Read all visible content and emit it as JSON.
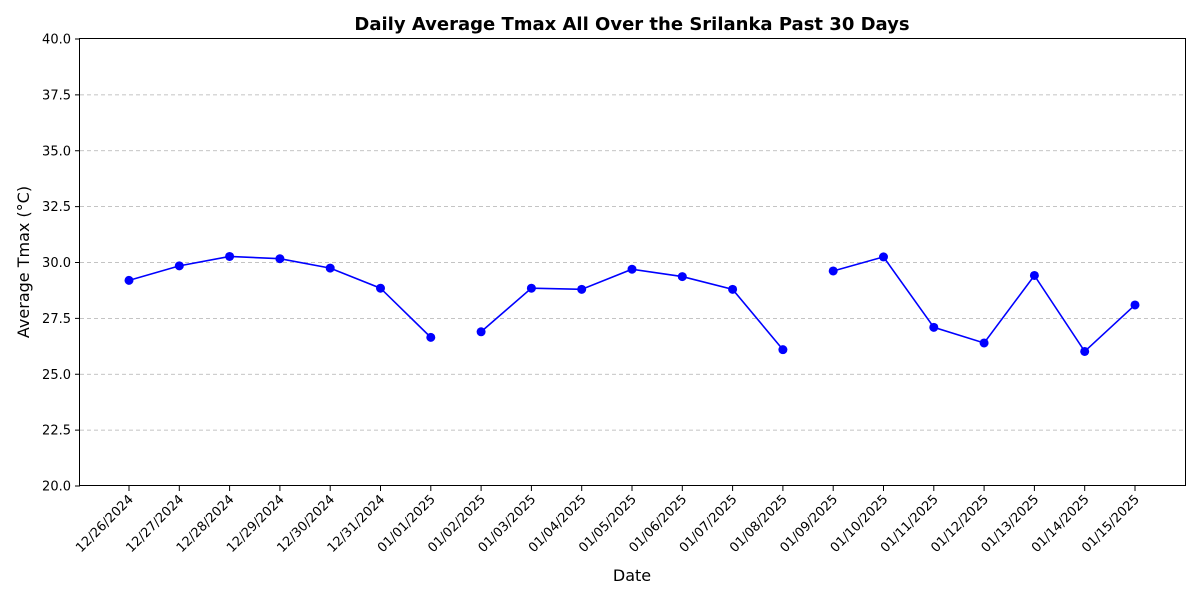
{
  "chart_data": {
    "type": "line",
    "title": "Daily Average Tmax All Over the Srilanka Past 30 Days",
    "xlabel": "Date",
    "ylabel": "Average Tmax (°C)",
    "ylim": [
      20.0,
      40.0
    ],
    "yticks": [
      "20.0",
      "22.5",
      "25.0",
      "27.5",
      "30.0",
      "32.5",
      "35.0",
      "37.5",
      "40.0"
    ],
    "grid": "y-dashed",
    "color": "#0000ff",
    "categories": [
      "12/26/2024",
      "12/27/2024",
      "12/28/2024",
      "12/29/2024",
      "12/30/2024",
      "12/31/2024",
      "01/01/2025",
      "01/02/2025",
      "01/03/2025",
      "01/04/2025",
      "01/05/2025",
      "01/06/2025",
      "01/07/2025",
      "01/08/2025",
      "01/09/2025",
      "01/10/2025",
      "01/11/2025",
      "01/12/2025",
      "01/13/2025",
      "01/14/2025",
      "01/15/2025"
    ],
    "series": [
      {
        "values": [
          29.2,
          29.85,
          30.27,
          30.17,
          29.75,
          28.85,
          26.65,
          26.9,
          28.85,
          28.8,
          29.7,
          29.37,
          28.8,
          26.1,
          29.62,
          30.25,
          27.1,
          26.4,
          29.42,
          26.02,
          28.1
        ],
        "segments": [
          [
            0,
            6
          ],
          [
            7,
            13
          ],
          [
            14,
            20
          ]
        ]
      }
    ]
  }
}
